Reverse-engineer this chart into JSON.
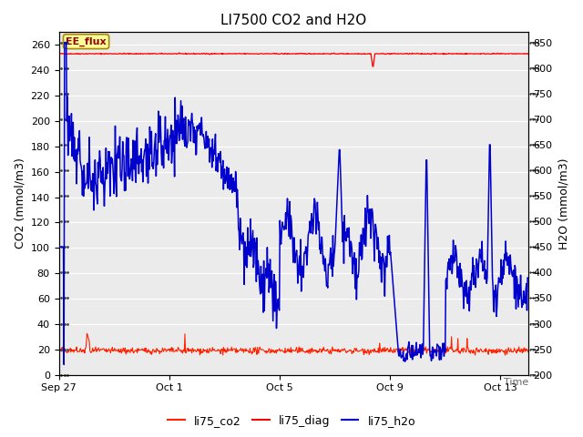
{
  "title": "LI7500 CO2 and H2O",
  "xlabel": "",
  "ylabel_left": "CO2 (mmol/m3)",
  "ylabel_right": "H2O (mmol/m3)",
  "ylim_left": [
    0,
    270
  ],
  "ylim_right": [
    200,
    870
  ],
  "background_color": "#ffffff",
  "plot_bg_color": "#ebebeb",
  "annotation_text": "EE_flux",
  "annotation_box_color": "#ffff99",
  "annotation_border_color": "#aa8800",
  "diag_color": "#ff0000",
  "co2_color": "#ff2200",
  "h2o_color": "#0000cc",
  "xtick_labels": [
    "Sep 27",
    "Oct 1",
    "Oct 5",
    "Oct 9",
    "Oct 13"
  ],
  "xtick_positions": [
    0,
    4,
    8,
    12,
    16
  ],
  "yticks_left": [
    0,
    20,
    40,
    60,
    80,
    100,
    120,
    140,
    160,
    180,
    200,
    220,
    240,
    260
  ],
  "yticks_right": [
    200,
    250,
    300,
    350,
    400,
    450,
    500,
    550,
    600,
    650,
    700,
    750,
    800,
    850
  ],
  "grid_color": "#ffffff",
  "title_fontsize": 11,
  "axis_label_fontsize": 9,
  "tick_fontsize": 8,
  "legend_fontsize": 9
}
